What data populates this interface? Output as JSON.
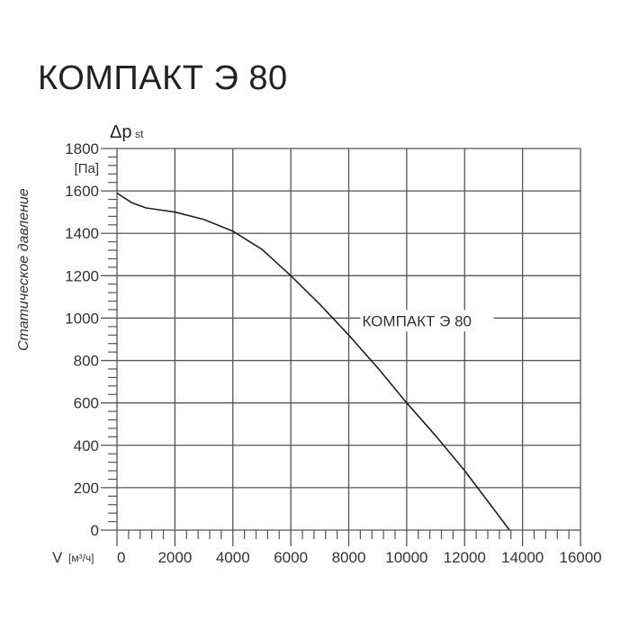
{
  "title": "КОМПАКТ Э 80",
  "chart_data": {
    "type": "line",
    "title": "КОМПАКТ Э 80",
    "xlabel": "V [м³/ч]",
    "ylabel": "Статическое давление",
    "y_symbol": "Δp",
    "y_symbol_sub": "st",
    "y_unit": "[Па]",
    "x_unit_label": "V",
    "x_unit": "[м³/ч]",
    "xlim": [
      0,
      16000
    ],
    "ylim": [
      0,
      1800
    ],
    "x_ticks": [
      0,
      2000,
      4000,
      6000,
      8000,
      10000,
      12000,
      14000,
      16000
    ],
    "y_ticks": [
      0,
      200,
      400,
      600,
      800,
      1000,
      1200,
      1400,
      1600,
      1800
    ],
    "x_minor_step": 400,
    "y_minor_step": 40,
    "grid": true,
    "series": [
      {
        "name": "КОМПАКТ Э 80",
        "x": [
          0,
          500,
          1000,
          2000,
          3000,
          4000,
          5000,
          6000,
          7000,
          8000,
          9000,
          10000,
          11000,
          12000,
          13000,
          13550
        ],
        "y": [
          1590,
          1545,
          1520,
          1500,
          1465,
          1410,
          1325,
          1200,
          1065,
          920,
          765,
          600,
          445,
          280,
          100,
          0
        ]
      }
    ],
    "annotations": [
      {
        "text": "КОМПАКТ Э 80",
        "x": 8900,
        "y": 860
      }
    ]
  }
}
